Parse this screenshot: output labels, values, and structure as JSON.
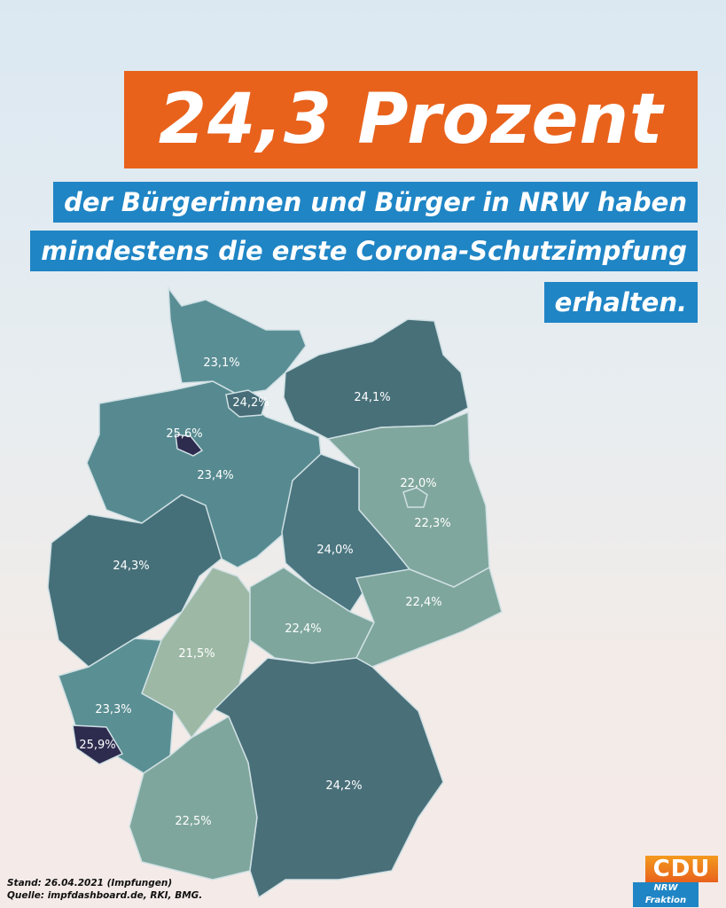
{
  "headline": "24,3 Prozent",
  "subtitle_lines": [
    "der Bürgerinnen und Bürger in NRW haben",
    "mindestens die erste Corona-Schutzimpfung",
    "erhalten."
  ],
  "colors": {
    "orange": "#e8621c",
    "blue": "#1f85c5"
  },
  "chart_data": {
    "type": "choropleth",
    "regions": [
      {
        "id": "sh",
        "value": "23,1%",
        "color": "#5a8e95"
      },
      {
        "id": "mv",
        "value": "24,1%",
        "color": "#487079"
      },
      {
        "id": "ni",
        "value": "23,4%",
        "color": "#568a90"
      },
      {
        "id": "hh",
        "value": "24,2%",
        "color": "#466d78"
      },
      {
        "id": "hb",
        "value": "25,6%",
        "color": "#2d2b4e"
      },
      {
        "id": "bb",
        "value": "22,3%",
        "color": "#80a79d"
      },
      {
        "id": "be",
        "value": "22,0%",
        "color": "#80a79d"
      },
      {
        "id": "st",
        "value": "24,0%",
        "color": "#4b7680"
      },
      {
        "id": "nw",
        "value": "24,3%",
        "color": "#467079"
      },
      {
        "id": "he",
        "value": "21,5%",
        "color": "#9db8a5"
      },
      {
        "id": "th",
        "value": "22,4%",
        "color": "#7ea69c"
      },
      {
        "id": "sn",
        "value": "22,4%",
        "color": "#7ea69c"
      },
      {
        "id": "rp",
        "value": "23,3%",
        "color": "#5a8f93"
      },
      {
        "id": "sl",
        "value": "25,9%",
        "color": "#2d2b4e"
      },
      {
        "id": "bw",
        "value": "22,5%",
        "color": "#7fa69c"
      },
      {
        "id": "by",
        "value": "24,2%",
        "color": "#496f79"
      }
    ]
  },
  "footer": {
    "date": "Stand: 26.04.2021 (Impfungen)",
    "source": "Quelle: impfdashboard.de, RKI, BMG."
  },
  "logo": {
    "main": "CDU",
    "sub": "NRW Fraktion"
  }
}
